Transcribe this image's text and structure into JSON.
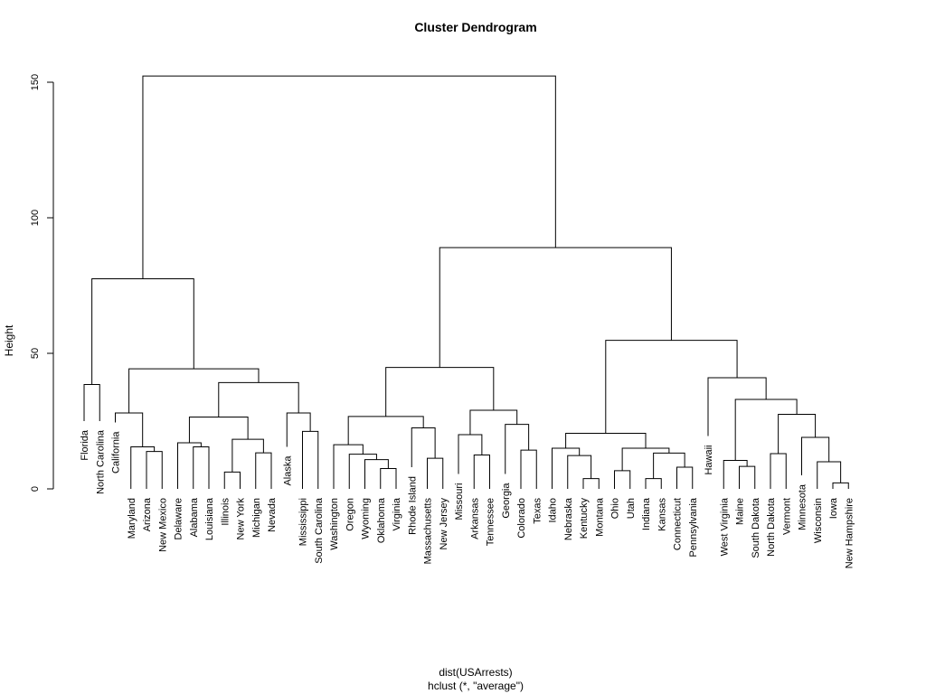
{
  "chart_data": {
    "type": "dendrogram",
    "title": "Cluster Dendrogram",
    "ylabel": "Height",
    "xlabel": "dist(USArrests)",
    "sublabel": "hclust (*, \"average\")",
    "ylim": [
      0,
      160
    ],
    "yticks": [
      0,
      50,
      100,
      150
    ],
    "colors": {
      "line": "#000000",
      "background": "#ffffff"
    },
    "leaves": [
      "Florida",
      "North Carolina",
      "California",
      "Maryland",
      "Arizona",
      "New Mexico",
      "Delaware",
      "Alabama",
      "Louisiana",
      "Illinois",
      "New York",
      "Michigan",
      "Nevada",
      "Alaska",
      "Mississippi",
      "South Carolina",
      "Washington",
      "Oregon",
      "Wyoming",
      "Oklahoma",
      "Virginia",
      "Rhode Island",
      "Massachusetts",
      "New Jersey",
      "Missouri",
      "Arkansas",
      "Tennessee",
      "Georgia",
      "Colorado",
      "Texas",
      "Idaho",
      "Nebraska",
      "Kentucky",
      "Montana",
      "Ohio",
      "Utah",
      "Indiana",
      "Kansas",
      "Connecticut",
      "Pennsylvania",
      "Hawaii",
      "West Virginia",
      "Maine",
      "South Dakota",
      "North Dakota",
      "Vermont",
      "Minnesota",
      "Wisconsin",
      "Iowa",
      "New Hampshire"
    ],
    "leaf_heights": [
      25.0,
      25.0,
      24.5,
      0,
      0,
      0,
      0,
      0,
      0,
      0,
      0,
      0,
      0,
      15.5,
      0,
      0,
      0,
      0,
      0,
      0,
      0,
      8.0,
      0,
      0,
      5.5,
      0,
      0,
      5.5,
      0,
      0,
      0,
      0,
      0,
      0,
      0,
      0,
      0,
      0,
      0,
      0,
      19.5,
      0,
      0,
      0,
      0,
      0,
      5.0,
      0,
      0,
      0
    ],
    "merges": [
      {
        "a": "Florida",
        "b": "North Carolina",
        "height": 38.5
      },
      {
        "a": "Arizona",
        "b": "New Mexico",
        "height": 13.8
      },
      {
        "a": "Maryland",
        "b": "Arizona+New Mexico",
        "height": 15.5
      },
      {
        "a": "California",
        "b": "Maryland+Arizona+New Mexico",
        "height": 28.0
      },
      {
        "a": "Alabama",
        "b": "Louisiana",
        "height": 15.5
      },
      {
        "a": "Delaware",
        "b": "Alabama+Louisiana",
        "height": 17.0
      },
      {
        "a": "Illinois",
        "b": "New York",
        "height": 6.2
      },
      {
        "a": "Michigan",
        "b": "Nevada",
        "height": 13.3
      },
      {
        "a": "Illinois+New York",
        "b": "Michigan+Nevada",
        "height": 18.3
      },
      {
        "a": "Delaware group",
        "b": "Illinois group",
        "height": 26.5
      },
      {
        "a": "Mississippi",
        "b": "South Carolina",
        "height": 21.2
      },
      {
        "a": "Alaska",
        "b": "Mississippi+South Carolina",
        "height": 28.0
      },
      {
        "a": "Delaware-Nevada",
        "b": "Alaska group",
        "height": 39.2
      },
      {
        "a": "California group",
        "b": "Delaware-South Carolina",
        "height": 44.3
      },
      {
        "a": "Florida+North Carolina",
        "b": "California-South Carolina",
        "height": 77.5
      },
      {
        "a": "Oklahoma",
        "b": "Virginia",
        "height": 7.5
      },
      {
        "a": "Wyoming",
        "b": "Oklahoma+Virginia",
        "height": 10.8
      },
      {
        "a": "Oregon",
        "b": "Wyoming group",
        "height": 12.8
      },
      {
        "a": "Washington",
        "b": "Oregon group",
        "height": 16.3
      },
      {
        "a": "Massachusetts",
        "b": "New Jersey",
        "height": 11.3
      },
      {
        "a": "Rhode Island",
        "b": "Massachusetts+New Jersey",
        "height": 22.5
      },
      {
        "a": "Washington group",
        "b": "Rhode Island group",
        "height": 26.7
      },
      {
        "a": "Arkansas",
        "b": "Tennessee",
        "height": 12.5
      },
      {
        "a": "Missouri",
        "b": "Arkansas+Tennessee",
        "height": 20.0
      },
      {
        "a": "Colorado",
        "b": "Texas",
        "height": 14.3
      },
      {
        "a": "Georgia",
        "b": "Colorado+Texas",
        "height": 23.8
      },
      {
        "a": "Missouri group",
        "b": "Georgia group",
        "height": 29.0
      },
      {
        "a": "Washington-New Jersey",
        "b": "Missouri-Texas",
        "height": 44.8
      },
      {
        "a": "Kentucky",
        "b": "Montana",
        "height": 3.8
      },
      {
        "a": "Nebraska",
        "b": "Kentucky+Montana",
        "height": 12.3
      },
      {
        "a": "Idaho",
        "b": "Nebraska group",
        "height": 15.0
      },
      {
        "a": "Ohio",
        "b": "Utah",
        "height": 6.7
      },
      {
        "a": "Indiana",
        "b": "Kansas",
        "height": 3.8
      },
      {
        "a": "Connecticut",
        "b": "Pennsylvania",
        "height": 8.0
      },
      {
        "a": "Indiana+Kansas",
        "b": "Connecticut+Pennsylvania",
        "height": 13.2
      },
      {
        "a": "Ohio+Utah",
        "b": "Indiana-Pennsylvania",
        "height": 15.0
      },
      {
        "a": "Idaho group",
        "b": "Ohio group",
        "height": 20.5
      },
      {
        "a": "Maine",
        "b": "South Dakota",
        "height": 8.3
      },
      {
        "a": "West Virginia",
        "b": "Maine+South Dakota",
        "height": 10.5
      },
      {
        "a": "North Dakota",
        "b": "Vermont",
        "height": 13.0
      },
      {
        "a": "Iowa",
        "b": "New Hampshire",
        "height": 2.2
      },
      {
        "a": "Wisconsin",
        "b": "Iowa+New Hampshire",
        "height": 10.0
      },
      {
        "a": "Minnesota",
        "b": "Wisconsin group",
        "height": 19.0
      },
      {
        "a": "North Dakota+Vermont",
        "b": "Minnesota group",
        "height": 27.5
      },
      {
        "a": "West Virginia group",
        "b": "North Dakota group",
        "height": 33.0
      },
      {
        "a": "Hawaii",
        "b": "West Virginia-New Hampshire",
        "height": 41.0
      },
      {
        "a": "Idaho-Pennsylvania",
        "b": "Hawaii group",
        "height": 54.8
      },
      {
        "a": "Washington-Texas",
        "b": "Idaho-New Hampshire",
        "height": 89.0
      },
      {
        "a": "Florida-South Carolina",
        "b": "Washington-New Hampshire",
        "height": 152.3
      }
    ]
  }
}
